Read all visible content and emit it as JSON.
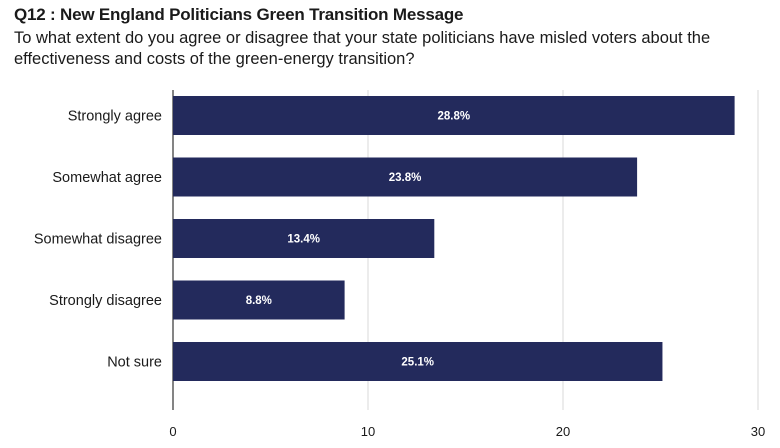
{
  "chart_data": {
    "type": "bar",
    "orientation": "horizontal",
    "title": "Q12 : New England Politicians Green Transition Message",
    "subtitle": "To what extent do you agree or disagree that your state politicians have misled voters about the effectiveness and costs of the green-energy transition?",
    "categories": [
      "Strongly agree",
      "Somewhat agree",
      "Somewhat disagree",
      "Strongly disagree",
      "Not sure"
    ],
    "values": [
      28.8,
      23.8,
      13.4,
      8.8,
      25.1
    ],
    "data_labels": [
      "28.8%",
      "23.8%",
      "13.4%",
      "8.8%",
      "25.1%"
    ],
    "xlim": [
      0,
      30
    ],
    "xticks": [
      0,
      10,
      20,
      30
    ],
    "xtick_labels": [
      "0",
      "10",
      "20",
      "30"
    ],
    "grid": true,
    "xlabel": "",
    "ylabel": "",
    "bar_color": "#232a5c"
  }
}
